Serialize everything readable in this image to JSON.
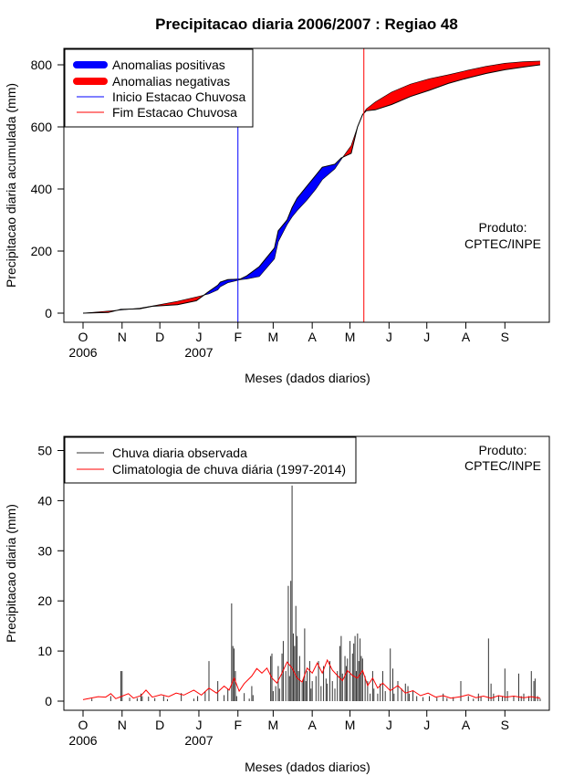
{
  "chart_data": [
    {
      "type": "area",
      "title": "Precipitacao diaria 2006/2007 : Regiao 48",
      "xlabel": "Meses (dados diarios)",
      "ylabel": "Precipitacao diaria acumulada (mm)",
      "ylim": [
        -30,
        830
      ],
      "yticks": [
        0,
        200,
        400,
        600,
        800
      ],
      "months": [
        "O",
        "N",
        "D",
        "J",
        "F",
        "M",
        "A",
        "M",
        "J",
        "J",
        "A",
        "S"
      ],
      "years": [
        "2006",
        "2007"
      ],
      "legend": [
        {
          "label": "Anomalias positivas",
          "color": "#0000ff",
          "style": "thick"
        },
        {
          "label": "Anomalias negativas",
          "color": "#ff0000",
          "style": "thick"
        },
        {
          "label": "Inicio Estacao Chuvosa",
          "color": "#0000ff",
          "style": "line"
        },
        {
          "label": "Fim Estacao Chuvosa",
          "color": "#ff0000",
          "style": "line"
        }
      ],
      "legend_position": "top-left",
      "annotation": [
        "Produto:",
        "CPTEC/INPE"
      ],
      "rainy_season": {
        "start_day": 123,
        "end_day": 223
      },
      "observed_cumulative": [
        [
          0,
          0
        ],
        [
          20,
          2
        ],
        [
          30,
          12
        ],
        [
          45,
          14
        ],
        [
          55,
          22
        ],
        [
          75,
          27
        ],
        [
          90,
          40
        ],
        [
          100,
          70
        ],
        [
          107,
          90
        ],
        [
          109,
          100
        ],
        [
          115,
          108
        ],
        [
          125,
          110
        ],
        [
          130,
          120
        ],
        [
          140,
          150
        ],
        [
          152,
          210
        ],
        [
          155,
          265
        ],
        [
          162,
          300
        ],
        [
          166,
          340
        ],
        [
          170,
          370
        ],
        [
          178,
          410
        ],
        [
          185,
          445
        ],
        [
          190,
          470
        ],
        [
          200,
          480
        ],
        [
          205,
          500
        ],
        [
          213,
          515
        ],
        [
          218,
          600
        ],
        [
          222,
          640
        ],
        [
          225,
          652
        ],
        [
          232,
          655
        ],
        [
          245,
          672
        ],
        [
          260,
          698
        ],
        [
          275,
          718
        ],
        [
          290,
          740
        ],
        [
          305,
          757
        ],
        [
          320,
          772
        ],
        [
          335,
          784
        ],
        [
          350,
          793
        ],
        [
          363,
          800
        ]
      ],
      "climatology_cumulative": [
        [
          0,
          0
        ],
        [
          30,
          10
        ],
        [
          45,
          16
        ],
        [
          55,
          23
        ],
        [
          75,
          38
        ],
        [
          90,
          52
        ],
        [
          100,
          62
        ],
        [
          107,
          75
        ],
        [
          109,
          85
        ],
        [
          115,
          98
        ],
        [
          125,
          108
        ],
        [
          130,
          110
        ],
        [
          140,
          118
        ],
        [
          152,
          175
        ],
        [
          155,
          230
        ],
        [
          162,
          285
        ],
        [
          166,
          310
        ],
        [
          170,
          330
        ],
        [
          178,
          365
        ],
        [
          185,
          400
        ],
        [
          190,
          430
        ],
        [
          200,
          465
        ],
        [
          205,
          495
        ],
        [
          213,
          540
        ],
        [
          218,
          600
        ],
        [
          222,
          640
        ],
        [
          225,
          658
        ],
        [
          232,
          680
        ],
        [
          245,
          712
        ],
        [
          260,
          738
        ],
        [
          275,
          755
        ],
        [
          290,
          768
        ],
        [
          305,
          782
        ],
        [
          320,
          795
        ],
        [
          335,
          805
        ],
        [
          350,
          810
        ],
        [
          363,
          812
        ]
      ]
    },
    {
      "type": "bar",
      "title": "",
      "xlabel": "Meses (dados diarios)",
      "ylabel": "Precipitacao diaria (mm)",
      "ylim": [
        -2,
        52
      ],
      "yticks": [
        0,
        10,
        20,
        30,
        40,
        50
      ],
      "months": [
        "O",
        "N",
        "D",
        "J",
        "F",
        "M",
        "A",
        "M",
        "J",
        "J",
        "A",
        "S"
      ],
      "years": [
        "2006",
        "2007"
      ],
      "legend": [
        {
          "label": "Chuva diaria observada",
          "color": "#333333",
          "style": "line"
        },
        {
          "label": "Climatologia de chuva diária (1997-2014)",
          "color": "#ff0000",
          "style": "line"
        }
      ],
      "legend_position": "top-left",
      "annotation": [
        "Produto:",
        "CPTEC/INPE"
      ],
      "observed_daily": [
        [
          7,
          0.5
        ],
        [
          22,
          1.0
        ],
        [
          30,
          6.0
        ],
        [
          31,
          6.0
        ],
        [
          37,
          0.7
        ],
        [
          43,
          0.6
        ],
        [
          46,
          1.5
        ],
        [
          47,
          1.0
        ],
        [
          52,
          0.9
        ],
        [
          57,
          0.6
        ],
        [
          64,
          1.0
        ],
        [
          67,
          0.4
        ],
        [
          78,
          1.6
        ],
        [
          88,
          0.5
        ],
        [
          91,
          1.0
        ],
        [
          97,
          2.0
        ],
        [
          100,
          8.0
        ],
        [
          107,
          4.0
        ],
        [
          112,
          1.2
        ],
        [
          115,
          2.5
        ],
        [
          118,
          19.5
        ],
        [
          119,
          11.0
        ],
        [
          120,
          10.5
        ],
        [
          121,
          6.0
        ],
        [
          122,
          1.0
        ],
        [
          128,
          1.6
        ],
        [
          132,
          0.5
        ],
        [
          134,
          3.0
        ],
        [
          135,
          1.2
        ],
        [
          149,
          9.0
        ],
        [
          150,
          9.5
        ],
        [
          151,
          2.0
        ],
        [
          153,
          3.0
        ],
        [
          155,
          7.0
        ],
        [
          156,
          2.5
        ],
        [
          158,
          9.5
        ],
        [
          159,
          12.0
        ],
        [
          161,
          6.0
        ],
        [
          163,
          23.0
        ],
        [
          164,
          5.0
        ],
        [
          165,
          24.0
        ],
        [
          166,
          43.0
        ],
        [
          167,
          13.5
        ],
        [
          168,
          11.0
        ],
        [
          169,
          19.0
        ],
        [
          170,
          13.0
        ],
        [
          171,
          6.0
        ],
        [
          172,
          9.0
        ],
        [
          174,
          4.0
        ],
        [
          175,
          4.5
        ],
        [
          176,
          14.5
        ],
        [
          177,
          4.0
        ],
        [
          178,
          6.0
        ],
        [
          180,
          8.0
        ],
        [
          181,
          2.5
        ],
        [
          182,
          4.0
        ],
        [
          185,
          5.0
        ],
        [
          187,
          8.0
        ],
        [
          189,
          3.0
        ],
        [
          191,
          7.0
        ],
        [
          193,
          4.5
        ],
        [
          194,
          3.5
        ],
        [
          196,
          8.0
        ],
        [
          198,
          4.0
        ],
        [
          200,
          2.5
        ],
        [
          202,
          6.0
        ],
        [
          204,
          11.0
        ],
        [
          205,
          13.0
        ],
        [
          206,
          5.5
        ],
        [
          208,
          9.0
        ],
        [
          209,
          7.0
        ],
        [
          210,
          8.5
        ],
        [
          212,
          12.0
        ],
        [
          214,
          9.5
        ],
        [
          215,
          11.5
        ],
        [
          216,
          13.0
        ],
        [
          217,
          6.0
        ],
        [
          218,
          13.5
        ],
        [
          219,
          8.0
        ],
        [
          220,
          12.5
        ],
        [
          221,
          9.0
        ],
        [
          222,
          8.5
        ],
        [
          224,
          5.0
        ],
        [
          226,
          4.0
        ],
        [
          228,
          1.5
        ],
        [
          230,
          6.0
        ],
        [
          231,
          2.5
        ],
        [
          234,
          1.5
        ],
        [
          236,
          3.5
        ],
        [
          238,
          6.0
        ],
        [
          240,
          2.0
        ],
        [
          244,
          10.5
        ],
        [
          246,
          6.5
        ],
        [
          247,
          1.5
        ],
        [
          250,
          4.0
        ],
        [
          253,
          2.5
        ],
        [
          256,
          3.5
        ],
        [
          258,
          3.0
        ],
        [
          259,
          1.5
        ],
        [
          262,
          2.0
        ],
        [
          265,
          1.0
        ],
        [
          270,
          0.8
        ],
        [
          275,
          1.0
        ],
        [
          281,
          0.7
        ],
        [
          286,
          1.5
        ],
        [
          289,
          0.6
        ],
        [
          294,
          0.8
        ],
        [
          300,
          4.0
        ],
        [
          306,
          1.0
        ],
        [
          310,
          0.5
        ],
        [
          314,
          1.5
        ],
        [
          316,
          1.0
        ],
        [
          322,
          12.5
        ],
        [
          324,
          3.5
        ],
        [
          326,
          1.5
        ],
        [
          330,
          1.0
        ],
        [
          333,
          1.0
        ],
        [
          335,
          6.5
        ],
        [
          337,
          2.0
        ],
        [
          342,
          1.0
        ],
        [
          346,
          5.5
        ],
        [
          348,
          1.0
        ],
        [
          350,
          1.5
        ],
        [
          354,
          1.0
        ],
        [
          356,
          6.0
        ],
        [
          358,
          4.0
        ],
        [
          359,
          4.5
        ],
        [
          361,
          1.0
        ],
        [
          363,
          0.5
        ]
      ],
      "climatology_daily": [
        [
          0,
          0.3
        ],
        [
          6,
          0.6
        ],
        [
          12,
          0.9
        ],
        [
          18,
          0.8
        ],
        [
          22,
          1.5
        ],
        [
          26,
          0.5
        ],
        [
          30,
          0.9
        ],
        [
          36,
          1.5
        ],
        [
          40,
          0.6
        ],
        [
          46,
          1.1
        ],
        [
          50,
          2.2
        ],
        [
          55,
          0.8
        ],
        [
          62,
          1.3
        ],
        [
          68,
          0.9
        ],
        [
          74,
          1.6
        ],
        [
          80,
          1.2
        ],
        [
          88,
          2.2
        ],
        [
          94,
          1.2
        ],
        [
          100,
          2.6
        ],
        [
          106,
          1.6
        ],
        [
          112,
          3.0
        ],
        [
          116,
          2.2
        ],
        [
          120,
          4.6
        ],
        [
          124,
          2.0
        ],
        [
          128,
          3.5
        ],
        [
          134,
          5.0
        ],
        [
          138,
          6.5
        ],
        [
          142,
          5.6
        ],
        [
          146,
          6.6
        ],
        [
          150,
          4.6
        ],
        [
          154,
          3.6
        ],
        [
          158,
          5.6
        ],
        [
          162,
          7.8
        ],
        [
          166,
          6.6
        ],
        [
          170,
          4.6
        ],
        [
          174,
          3.8
        ],
        [
          178,
          6.6
        ],
        [
          182,
          5.6
        ],
        [
          186,
          7.6
        ],
        [
          190,
          5.6
        ],
        [
          194,
          8.2
        ],
        [
          198,
          6.2
        ],
        [
          202,
          5.1
        ],
        [
          206,
          4.1
        ],
        [
          210,
          6.1
        ],
        [
          214,
          5.1
        ],
        [
          218,
          4.6
        ],
        [
          222,
          6.1
        ],
        [
          226,
          3.1
        ],
        [
          230,
          4.6
        ],
        [
          234,
          2.6
        ],
        [
          238,
          3.6
        ],
        [
          244,
          2.1
        ],
        [
          250,
          3.1
        ],
        [
          256,
          1.6
        ],
        [
          262,
          2.1
        ],
        [
          268,
          1.1
        ],
        [
          274,
          1.6
        ],
        [
          280,
          0.8
        ],
        [
          286,
          1.1
        ],
        [
          292,
          0.6
        ],
        [
          300,
          0.9
        ],
        [
          306,
          1.3
        ],
        [
          312,
          0.7
        ],
        [
          318,
          1.0
        ],
        [
          324,
          0.6
        ],
        [
          330,
          1.1
        ],
        [
          336,
          0.8
        ],
        [
          342,
          1.0
        ],
        [
          350,
          0.7
        ],
        [
          356,
          0.9
        ],
        [
          363,
          0.6
        ]
      ]
    }
  ]
}
